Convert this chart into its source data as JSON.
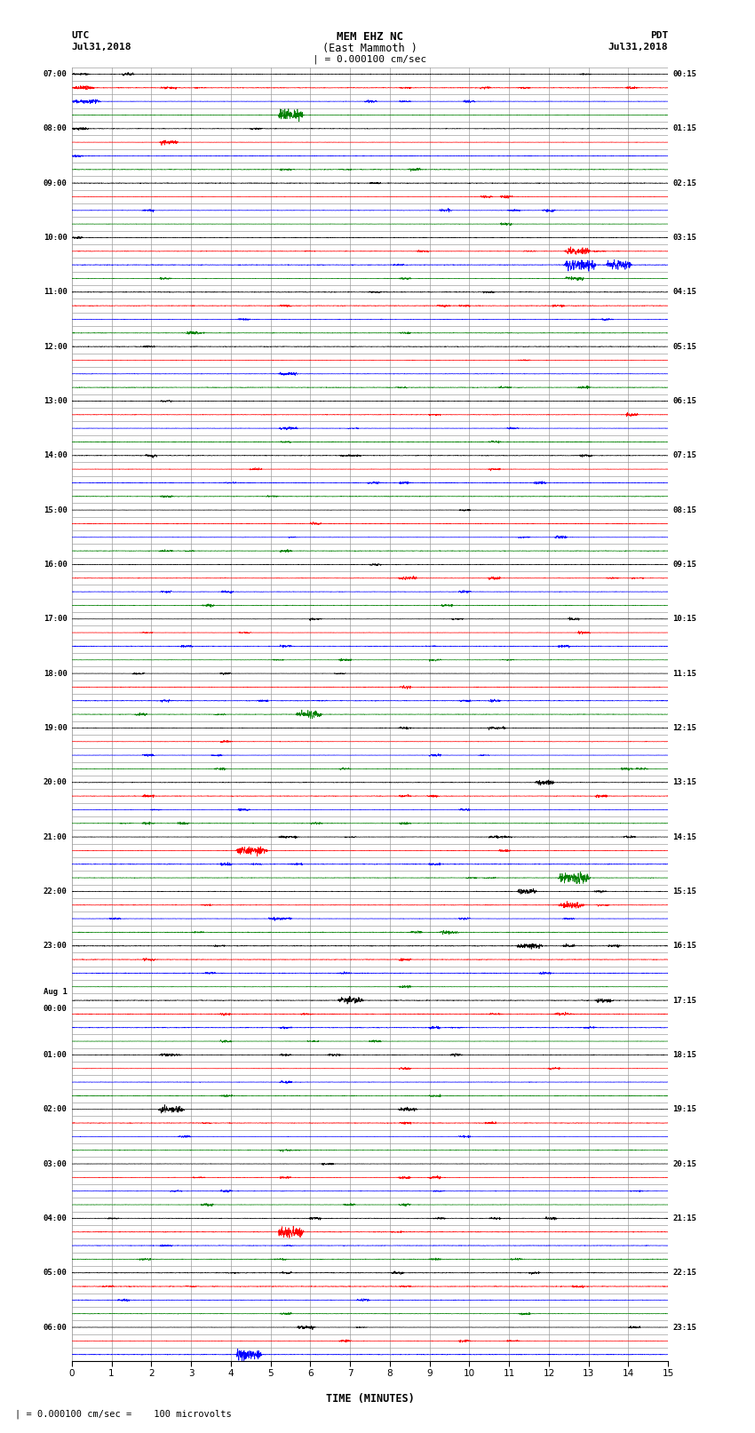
{
  "title_line1": "MEM EHZ NC",
  "title_line2": "(East Mammoth )",
  "scale_label": "| = 0.000100 cm/sec",
  "utc_label": "UTC",
  "utc_date": "Jul31,2018",
  "pdt_label": "PDT",
  "pdt_date": "Jul31,2018",
  "xlabel": "TIME (MINUTES)",
  "footer": "| = 0.000100 cm/sec =    100 microvolts",
  "bg_color": "#ffffff",
  "grid_color": "#aaaaaa",
  "trace_colors": [
    "black",
    "red",
    "blue",
    "green"
  ],
  "left_labels": [
    "07:00",
    "",
    "",
    "",
    "08:00",
    "",
    "",
    "",
    "09:00",
    "",
    "",
    "",
    "10:00",
    "",
    "",
    "",
    "11:00",
    "",
    "",
    "",
    "12:00",
    "",
    "",
    "",
    "13:00",
    "",
    "",
    "",
    "14:00",
    "",
    "",
    "",
    "15:00",
    "",
    "",
    "",
    "16:00",
    "",
    "",
    "",
    "17:00",
    "",
    "",
    "",
    "18:00",
    "",
    "",
    "",
    "19:00",
    "",
    "",
    "",
    "20:00",
    "",
    "",
    "",
    "21:00",
    "",
    "",
    "",
    "22:00",
    "",
    "",
    "",
    "23:00",
    "",
    "",
    "",
    "Aug 1\n00:00",
    "",
    "",
    "",
    "01:00",
    "",
    "",
    "",
    "02:00",
    "",
    "",
    "",
    "03:00",
    "",
    "",
    "",
    "04:00",
    "",
    "",
    "",
    "05:00",
    "",
    "",
    "",
    "06:00",
    "",
    ""
  ],
  "right_labels": [
    "00:15",
    "",
    "",
    "",
    "01:15",
    "",
    "",
    "",
    "02:15",
    "",
    "",
    "",
    "03:15",
    "",
    "",
    "",
    "04:15",
    "",
    "",
    "",
    "05:15",
    "",
    "",
    "",
    "06:15",
    "",
    "",
    "",
    "07:15",
    "",
    "",
    "",
    "08:15",
    "",
    "",
    "",
    "09:15",
    "",
    "",
    "",
    "10:15",
    "",
    "",
    "",
    "11:15",
    "",
    "",
    "",
    "12:15",
    "",
    "",
    "",
    "13:15",
    "",
    "",
    "",
    "14:15",
    "",
    "",
    "",
    "15:15",
    "",
    "",
    "",
    "16:15",
    "",
    "",
    "",
    "17:15",
    "",
    "",
    "",
    "18:15",
    "",
    "",
    "",
    "19:15",
    "",
    "",
    "",
    "20:15",
    "",
    "",
    "",
    "21:15",
    "",
    "",
    "",
    "22:15",
    "",
    "",
    "",
    "23:15",
    "",
    ""
  ],
  "n_rows": 95,
  "n_cols": 4,
  "minutes": 15,
  "seed": 12345
}
